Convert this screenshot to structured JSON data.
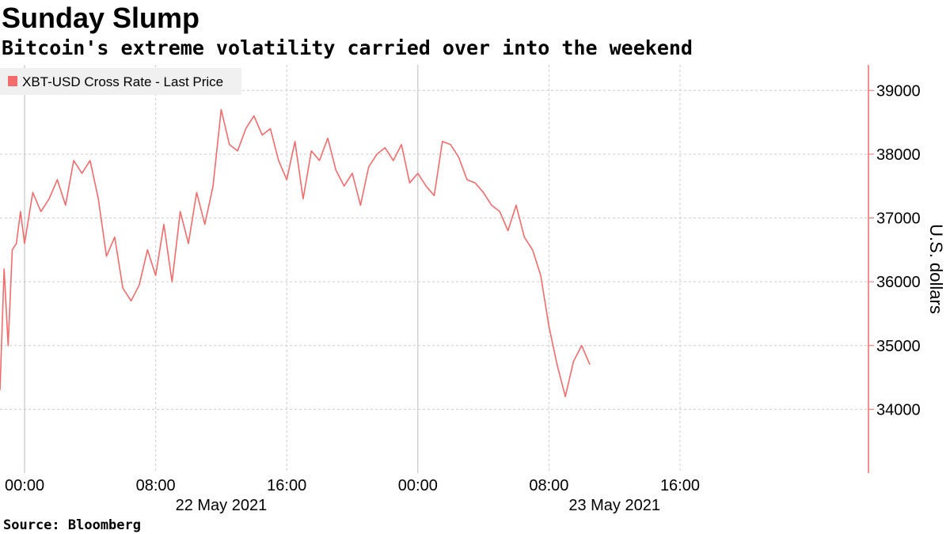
{
  "chart_data": {
    "type": "line",
    "title": "Sunday Slump",
    "subtitle": "Bitcoin's extreme volatility carried over into the weekend",
    "source": "Source: Bloomberg",
    "ylabel": "U.S. dollars",
    "ylim": [
      33000,
      39400
    ],
    "yticks": [
      34000,
      35000,
      36000,
      37000,
      38000,
      39000
    ],
    "x_range": [
      "2021-05-21 22:30",
      "2021-05-24 03:30"
    ],
    "xticks": [
      {
        "t": "2021-05-22 00:00",
        "label": "00:00"
      },
      {
        "t": "2021-05-22 08:00",
        "label": "08:00"
      },
      {
        "t": "2021-05-22 16:00",
        "label": "16:00"
      },
      {
        "t": "2021-05-23 00:00",
        "label": "00:00"
      },
      {
        "t": "2021-05-23 08:00",
        "label": "08:00"
      },
      {
        "t": "2021-05-23 16:00",
        "label": "16:00"
      }
    ],
    "date_labels": [
      {
        "t": "2021-05-22 12:00",
        "label": "22 May 2021"
      },
      {
        "t": "2021-05-23 12:00",
        "label": "23 May 2021"
      }
    ],
    "grid": true,
    "legend_position": "top-left",
    "colors": {
      "line": "#f36b6b",
      "grid": "#cccccc",
      "axis": "#f36b6b"
    },
    "series": [
      {
        "name": "XBT-USD Cross Rate - Last Price",
        "x": [
          "2021-05-21 22:30",
          "2021-05-21 22:45",
          "2021-05-21 23:00",
          "2021-05-21 23:15",
          "2021-05-21 23:30",
          "2021-05-21 23:45",
          "2021-05-22 00:00",
          "2021-05-22 00:30",
          "2021-05-22 01:00",
          "2021-05-22 01:30",
          "2021-05-22 02:00",
          "2021-05-22 02:30",
          "2021-05-22 03:00",
          "2021-05-22 03:30",
          "2021-05-22 04:00",
          "2021-05-22 04:30",
          "2021-05-22 05:00",
          "2021-05-22 05:30",
          "2021-05-22 06:00",
          "2021-05-22 06:30",
          "2021-05-22 07:00",
          "2021-05-22 07:30",
          "2021-05-22 08:00",
          "2021-05-22 08:30",
          "2021-05-22 09:00",
          "2021-05-22 09:30",
          "2021-05-22 10:00",
          "2021-05-22 10:30",
          "2021-05-22 11:00",
          "2021-05-22 11:30",
          "2021-05-22 12:00",
          "2021-05-22 12:30",
          "2021-05-22 13:00",
          "2021-05-22 13:30",
          "2021-05-22 14:00",
          "2021-05-22 14:30",
          "2021-05-22 15:00",
          "2021-05-22 15:30",
          "2021-05-22 16:00",
          "2021-05-22 16:30",
          "2021-05-22 17:00",
          "2021-05-22 17:30",
          "2021-05-22 18:00",
          "2021-05-22 18:30",
          "2021-05-22 19:00",
          "2021-05-22 19:30",
          "2021-05-22 20:00",
          "2021-05-22 20:30",
          "2021-05-22 21:00",
          "2021-05-22 21:30",
          "2021-05-22 22:00",
          "2021-05-22 22:30",
          "2021-05-22 23:00",
          "2021-05-22 23:30",
          "2021-05-23 00:00",
          "2021-05-23 00:30",
          "2021-05-23 01:00",
          "2021-05-23 01:30",
          "2021-05-23 02:00",
          "2021-05-23 02:30",
          "2021-05-23 03:00",
          "2021-05-23 03:30",
          "2021-05-23 04:00",
          "2021-05-23 04:30",
          "2021-05-23 05:00",
          "2021-05-23 05:30",
          "2021-05-23 06:00",
          "2021-05-23 06:30",
          "2021-05-23 07:00",
          "2021-05-23 07:30",
          "2021-05-23 08:00",
          "2021-05-23 08:30",
          "2021-05-23 09:00",
          "2021-05-23 09:30",
          "2021-05-23 10:00",
          "2021-05-23 10:30"
        ],
        "values": [
          34300,
          36200,
          35000,
          36500,
          36600,
          37100,
          36600,
          37400,
          37100,
          37300,
          37600,
          37200,
          37900,
          37700,
          37900,
          37300,
          36400,
          36700,
          35900,
          35700,
          35950,
          36500,
          36100,
          36900,
          36000,
          37100,
          36600,
          37400,
          36900,
          37500,
          38700,
          38150,
          38050,
          38400,
          38600,
          38300,
          38400,
          37900,
          37600,
          38200,
          37300,
          38050,
          37900,
          38250,
          37750,
          37500,
          37700,
          37200,
          37800,
          38000,
          38100,
          37900,
          38150,
          37550,
          37700,
          37500,
          37350,
          38200,
          38150,
          37950,
          37600,
          37550,
          37400,
          37200,
          37100,
          36800,
          37200,
          36700,
          36500,
          36100,
          35300,
          34700,
          34200,
          34750,
          35000,
          34700
        ]
      }
    ]
  }
}
